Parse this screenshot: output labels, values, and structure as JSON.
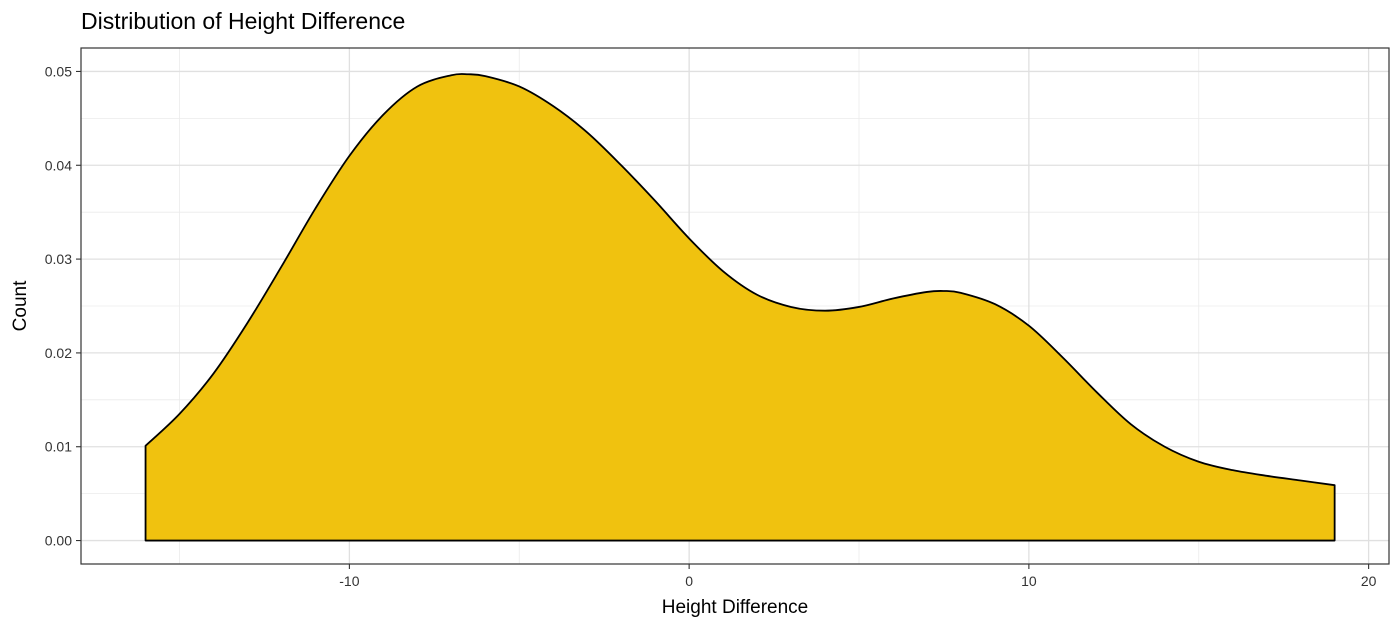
{
  "chart_data": {
    "type": "area",
    "title": "Distribution of  Height Difference",
    "xlabel": "Height Difference",
    "ylabel": "Count",
    "xlim": [
      -17.9,
      20.6
    ],
    "ylim": [
      -0.0025,
      0.0525
    ],
    "xticks": [
      -10,
      0,
      10,
      20
    ],
    "yticks": [
      0.0,
      0.01,
      0.02,
      0.03,
      0.04,
      0.05
    ],
    "x_tick_labels": [
      "-10",
      "0",
      "10",
      "20"
    ],
    "y_tick_labels": [
      "0.00",
      "0.01",
      "0.02",
      "0.03",
      "0.04",
      "0.05"
    ],
    "grid": true,
    "fill_color": "#F0C20F",
    "line_color": "#000000",
    "series": [
      {
        "x": [
          -16,
          -15,
          -14,
          -13,
          -12,
          -11,
          -10,
          -9,
          -8,
          -7,
          -6.5,
          -6,
          -5,
          -4,
          -3,
          -2,
          -1,
          0,
          1,
          2,
          3,
          4,
          5,
          6,
          7,
          7.5,
          8,
          9,
          10,
          11,
          12,
          13,
          14,
          15,
          16,
          17,
          18,
          19
        ],
        "y": [
          0.0101,
          0.0135,
          0.0178,
          0.0232,
          0.0292,
          0.0354,
          0.041,
          0.0454,
          0.0484,
          0.0496,
          0.0497,
          0.0495,
          0.0484,
          0.0463,
          0.0435,
          0.04,
          0.0362,
          0.0322,
          0.0287,
          0.0262,
          0.0249,
          0.0245,
          0.0249,
          0.0258,
          0.0265,
          0.0266,
          0.0264,
          0.0252,
          0.0229,
          0.0195,
          0.0158,
          0.0124,
          0.01,
          0.0084,
          0.0075,
          0.0069,
          0.0064,
          0.0059
        ]
      }
    ]
  }
}
